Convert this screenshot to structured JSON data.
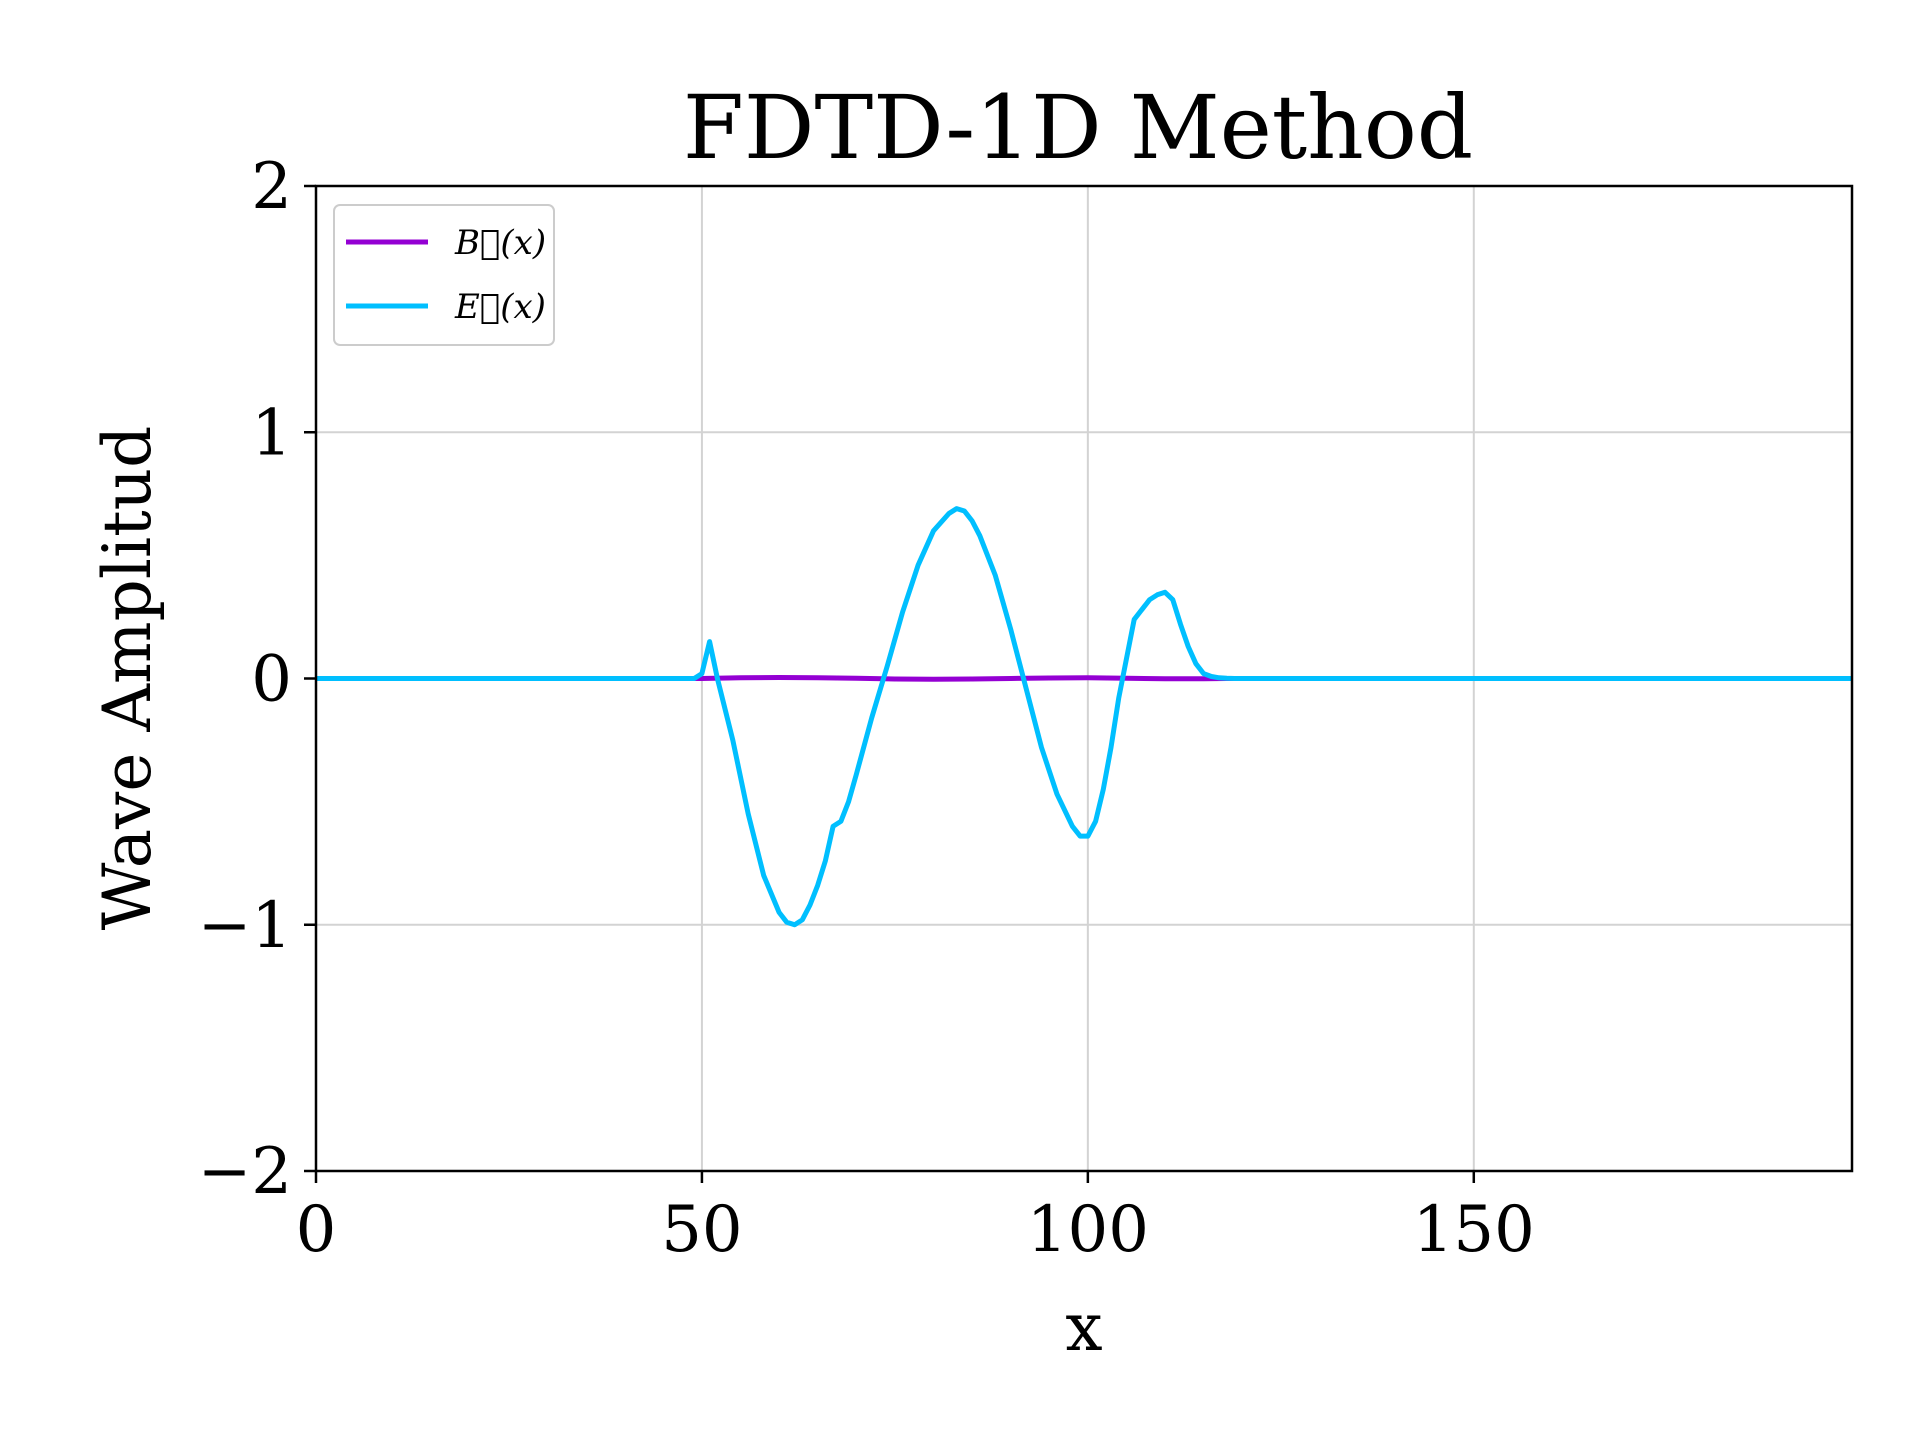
{
  "chart_data": {
    "type": "line",
    "title": "FDTD-1D Method",
    "xlabel": "x",
    "ylabel": "Wave Amplitud",
    "xlim": [
      0,
      199
    ],
    "ylim": [
      -2,
      2
    ],
    "xticks": [
      0,
      50,
      100,
      150
    ],
    "xtick_labels": [
      "0",
      "50",
      "100",
      "150"
    ],
    "yticks": [
      -2,
      -1,
      0,
      1,
      2
    ],
    "ytick_labels": [
      "−2",
      "−1",
      "0",
      "1",
      "2"
    ],
    "grid": true,
    "legend_position": "top-left",
    "series": [
      {
        "name": "B⃗(x)",
        "color": "#9400D3",
        "x": [
          0,
          50,
          55,
          60,
          65,
          70,
          75,
          80,
          85,
          90,
          95,
          100,
          105,
          110,
          115,
          118,
          120,
          199
        ],
        "y": [
          0,
          0,
          0.003,
          0.004,
          0.003,
          0.001,
          -0.002,
          -0.003,
          -0.002,
          0.0,
          0.002,
          0.003,
          0.001,
          -0.001,
          -0.001,
          0.0,
          0,
          0
        ]
      },
      {
        "name": "E⃗(x)",
        "color": "#00BFFF",
        "x": [
          0,
          49,
          50,
          51,
          52,
          54,
          56,
          58,
          60,
          61,
          62,
          63,
          64,
          65,
          66,
          67,
          68,
          69,
          70,
          72,
          74,
          76,
          78,
          80,
          82,
          83,
          84,
          85,
          86,
          88,
          90,
          92,
          94,
          96,
          98,
          99,
          100,
          101,
          102,
          103,
          104,
          106,
          108,
          109,
          110,
          111,
          112,
          113,
          114,
          115,
          116,
          117,
          118,
          119,
          120,
          199
        ],
        "y": [
          0,
          0,
          0.02,
          0.15,
          0.0,
          -0.25,
          -0.55,
          -0.8,
          -0.95,
          -0.99,
          -1.0,
          -0.98,
          -0.92,
          -0.84,
          -0.74,
          -0.6,
          -0.58,
          -0.5,
          -0.39,
          -0.16,
          0.05,
          0.27,
          0.46,
          0.6,
          0.67,
          0.69,
          0.68,
          0.64,
          0.58,
          0.42,
          0.2,
          -0.04,
          -0.28,
          -0.47,
          -0.6,
          -0.64,
          -0.64,
          -0.58,
          -0.45,
          -0.28,
          -0.08,
          0.24,
          0.32,
          0.34,
          0.35,
          0.32,
          0.22,
          0.13,
          0.06,
          0.02,
          0.008,
          0.003,
          0.001,
          0,
          0,
          0
        ]
      }
    ]
  }
}
